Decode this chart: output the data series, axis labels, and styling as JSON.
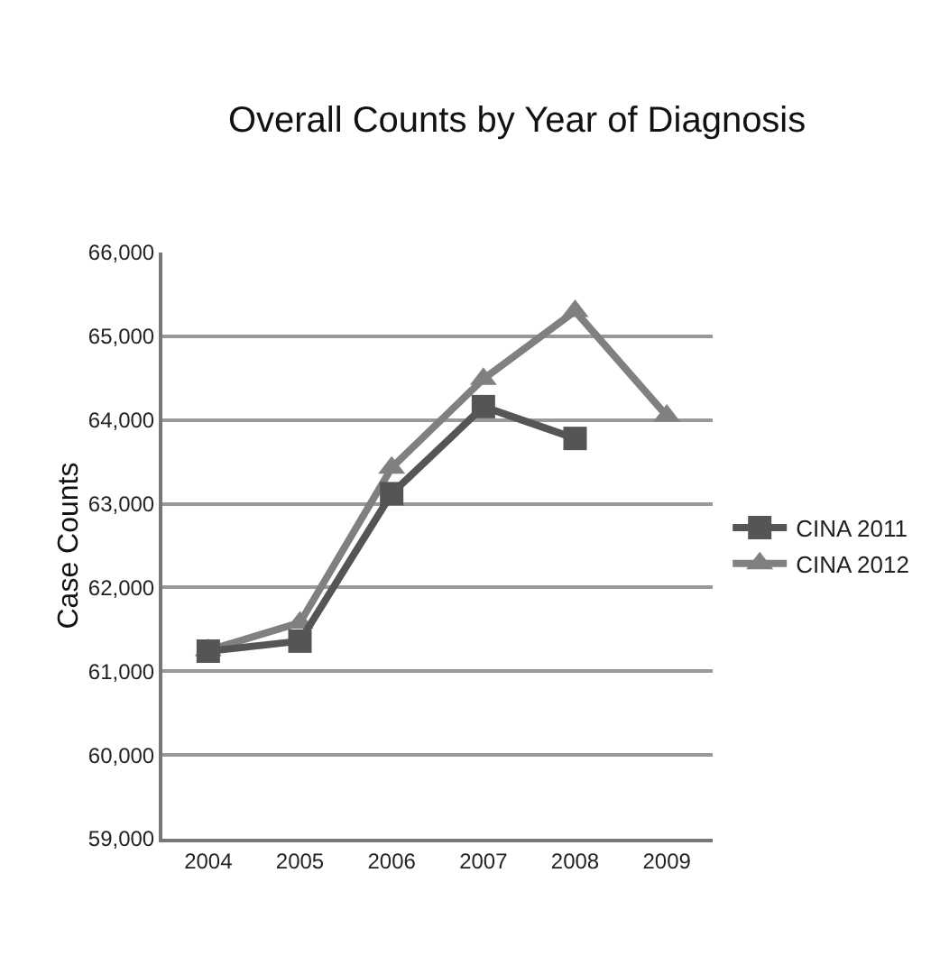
{
  "chart_data": {
    "type": "line",
    "title": "Overall Counts by Year of Diagnosis",
    "ylabel": "Case Counts",
    "categories": [
      "2004",
      "2005",
      "2006",
      "2007",
      "2008",
      "2009"
    ],
    "series": [
      {
        "name": "CINA 2011",
        "color": "#555555",
        "marker": "square",
        "values": [
          61240,
          61360,
          63120,
          64160,
          63780,
          null
        ]
      },
      {
        "name": "CINA 2012",
        "color": "#808080",
        "marker": "triangle",
        "values": [
          61250,
          61580,
          63430,
          64490,
          65300,
          64050
        ]
      }
    ],
    "ylim": [
      59000,
      66000
    ],
    "yticks": [
      {
        "value": 59000,
        "label": "59,000"
      },
      {
        "value": 60000,
        "label": "60,000"
      },
      {
        "value": 61000,
        "label": "61,000"
      },
      {
        "value": 62000,
        "label": "62,000"
      },
      {
        "value": 63000,
        "label": "63,000"
      },
      {
        "value": 64000,
        "label": "64,000"
      },
      {
        "value": 65000,
        "label": "65,000"
      },
      {
        "value": 66000,
        "label": "66,000"
      }
    ],
    "grid": "y",
    "legend": "right"
  }
}
